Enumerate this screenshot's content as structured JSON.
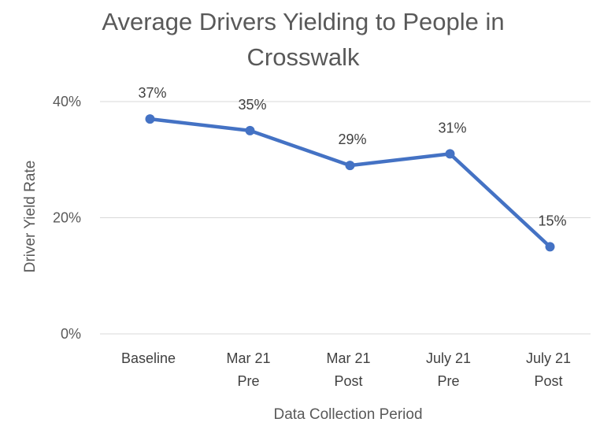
{
  "chart_data": {
    "type": "line",
    "title_lines": [
      "Average Drivers Yielding to People in",
      "Crosswalk"
    ],
    "xlabel": "Data Collection Period",
    "ylabel": "Driver Yield Rate",
    "categories": [
      [
        "Baseline"
      ],
      [
        "Mar 21",
        "Pre"
      ],
      [
        "Mar 21",
        "Post"
      ],
      [
        "July 21",
        "Pre"
      ],
      [
        "July 21",
        "Post"
      ]
    ],
    "values": [
      37,
      35,
      29,
      31,
      15
    ],
    "data_labels": [
      "37%",
      "35%",
      "29%",
      "31%",
      "15%"
    ],
    "yticks": [
      0,
      20,
      40
    ],
    "ytick_labels": [
      "0%",
      "20%",
      "40%"
    ],
    "ylim": [
      0,
      40
    ],
    "grid": true,
    "line_color": "#4472C4",
    "grid_color": "#d9d9d9"
  }
}
